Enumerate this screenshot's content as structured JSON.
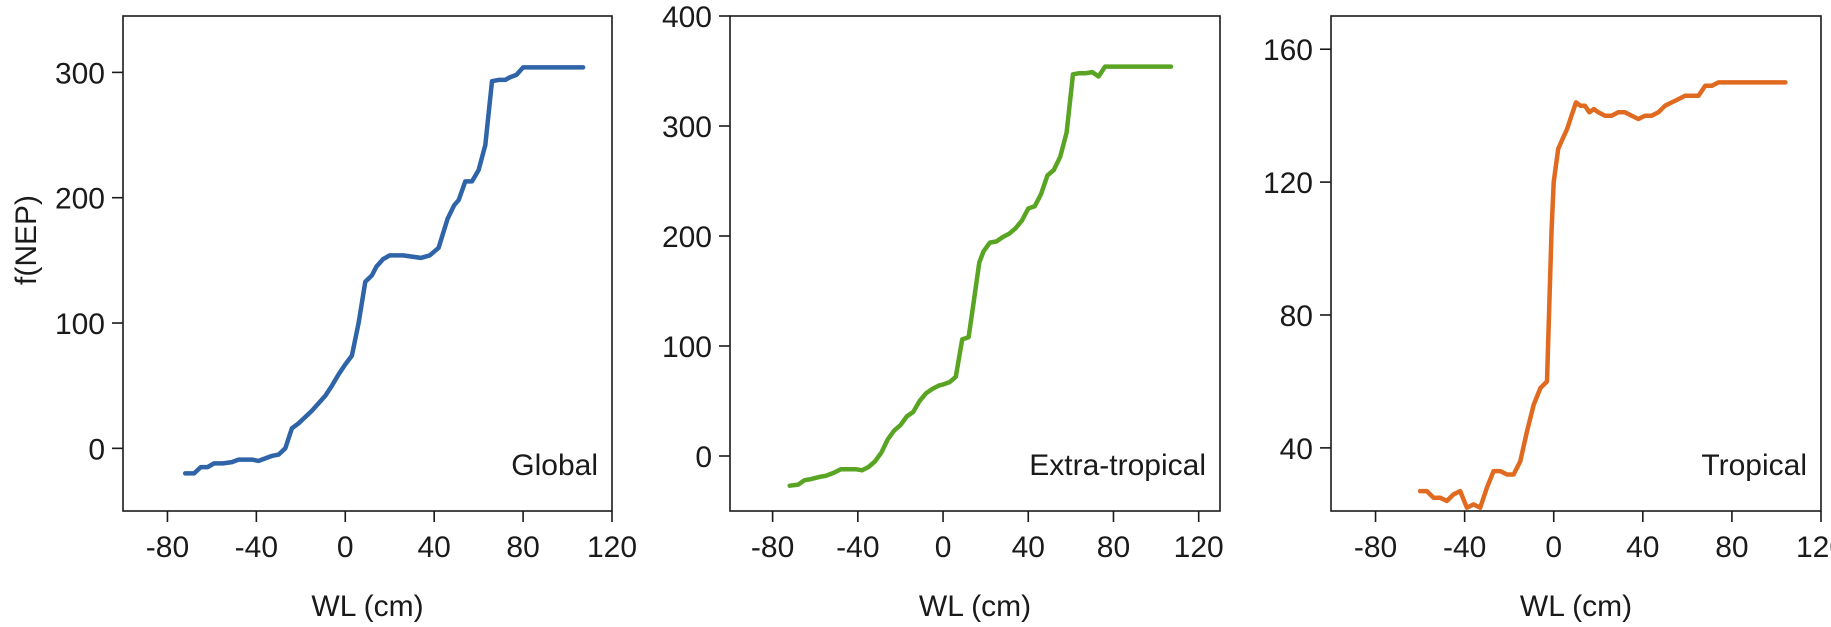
{
  "figure": {
    "shared_ylabel": "f(NEP)"
  },
  "chart_data": [
    {
      "type": "line",
      "panel_label": "Global",
      "xlabel": "WL (cm)",
      "ylabel": "f(NEP)",
      "xlim": [
        -100,
        120
      ],
      "ylim": [
        -50,
        345
      ],
      "xticks": [
        -80,
        -40,
        0,
        40,
        80,
        120
      ],
      "yticks": [
        0,
        100,
        200,
        300
      ],
      "color": "#2f64a8",
      "series": [
        {
          "x": [
            -72,
            -68,
            -65,
            -62,
            -59,
            -55,
            -51,
            -48,
            -45,
            -42,
            -39,
            -36,
            -33,
            -30,
            -27,
            -24,
            -21,
            -18,
            -15,
            -12,
            -9,
            -6,
            -3,
            0,
            3,
            6,
            9,
            12,
            14,
            17,
            20,
            23,
            26,
            30,
            34,
            38,
            42,
            46,
            49,
            51,
            54,
            57,
            60,
            63,
            66,
            69,
            72,
            74,
            77,
            80,
            83,
            86,
            89,
            92,
            95,
            100,
            107
          ],
          "y": [
            -20,
            -20,
            -15,
            -15,
            -12,
            -12,
            -11,
            -9,
            -9,
            -9,
            -10,
            -8,
            -6,
            -5,
            0,
            16,
            20,
            25,
            30,
            36,
            42,
            50,
            59,
            67,
            74,
            100,
            133,
            138,
            145,
            151,
            154,
            154,
            154,
            153,
            152,
            154,
            160,
            183,
            194,
            198,
            213,
            213,
            222,
            242,
            293,
            294,
            294,
            296,
            298,
            304,
            304,
            304,
            304,
            304,
            304,
            304,
            304
          ]
        }
      ]
    },
    {
      "type": "line",
      "panel_label": "Extra-tropical",
      "xlabel": "WL (cm)",
      "ylabel": "",
      "xlim": [
        -100,
        130
      ],
      "ylim": [
        -50,
        400
      ],
      "xticks": [
        -80,
        -40,
        0,
        40,
        80,
        120
      ],
      "yticks": [
        0,
        100,
        200,
        300,
        400
      ],
      "color": "#5aa423",
      "series": [
        {
          "x": [
            -72,
            -68,
            -65,
            -62,
            -58,
            -55,
            -51,
            -48,
            -44,
            -41,
            -38,
            -35,
            -32,
            -29,
            -26,
            -23,
            -20,
            -17,
            -14,
            -11,
            -8,
            -5,
            -2,
            0,
            3,
            6,
            9,
            12,
            14,
            17,
            19,
            22,
            25,
            28,
            31,
            34,
            37,
            40,
            43,
            46,
            49,
            52,
            55,
            58,
            61,
            64,
            67,
            70,
            73,
            76,
            79,
            82,
            85,
            88,
            91,
            94,
            100,
            107
          ],
          "y": [
            -27,
            -26,
            -22,
            -21,
            -19,
            -18,
            -15,
            -12,
            -12,
            -12,
            -13,
            -10,
            -5,
            3,
            15,
            23,
            28,
            36,
            40,
            50,
            57,
            61,
            64,
            65,
            67,
            72,
            106,
            108,
            135,
            176,
            186,
            194,
            195,
            199,
            202,
            207,
            214,
            225,
            227,
            238,
            255,
            260,
            272,
            294,
            347,
            348,
            348,
            349,
            345,
            354,
            354,
            354,
            354,
            354,
            354,
            354,
            354,
            354
          ]
        }
      ]
    },
    {
      "type": "line",
      "panel_label": "Tropical",
      "xlabel": "WL (cm)",
      "ylabel": "",
      "xlim": [
        -100,
        120
      ],
      "ylim": [
        21,
        170
      ],
      "xticks": [
        -80,
        -40,
        0,
        40,
        80,
        120
      ],
      "yticks": [
        40,
        80,
        120,
        160
      ],
      "color": "#e06a1f",
      "series": [
        {
          "x": [
            -60,
            -57,
            -54,
            -51,
            -48,
            -45,
            -42,
            -39,
            -36,
            -33,
            -30,
            -27,
            -24,
            -21,
            -18,
            -15,
            -12,
            -9,
            -6,
            -3,
            -1,
            0,
            2,
            4,
            6,
            8,
            10,
            12,
            14,
            16,
            18,
            20,
            23,
            26,
            29,
            32,
            35,
            38,
            41,
            44,
            47,
            50,
            53,
            56,
            59,
            62,
            65,
            68,
            71,
            74,
            77,
            80,
            83,
            86,
            89,
            92,
            96,
            100,
            104
          ],
          "y": [
            27,
            27,
            25,
            25,
            24,
            26,
            27,
            22,
            23,
            22,
            28,
            33,
            33,
            32,
            32,
            36,
            45,
            53,
            58,
            60,
            105,
            120,
            130,
            133,
            136,
            140,
            144,
            143,
            143,
            141,
            142,
            141,
            140,
            140,
            141,
            141,
            140,
            139,
            140,
            140,
            141,
            143,
            144,
            145,
            146,
            146,
            146,
            149,
            149,
            150,
            150,
            150,
            150,
            150,
            150,
            150,
            150,
            150,
            150
          ]
        }
      ]
    }
  ]
}
